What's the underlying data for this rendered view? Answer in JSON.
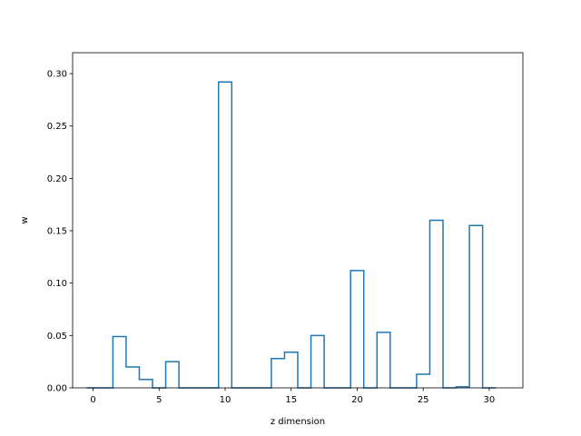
{
  "chart_data": {
    "type": "bar",
    "style": "step-histogram",
    "xlabel": "z dimension",
    "ylabel": "w",
    "xlim": [
      -1.55,
      32.55
    ],
    "ylim": [
      0,
      0.32
    ],
    "xticks": [
      0,
      5,
      10,
      15,
      20,
      25,
      30
    ],
    "yticks": [
      0.0,
      0.05,
      0.1,
      0.15,
      0.2,
      0.25,
      0.3
    ],
    "xtick_labels": [
      "0",
      "5",
      "10",
      "15",
      "20",
      "25",
      "30"
    ],
    "ytick_labels": [
      "0.00",
      "0.05",
      "0.10",
      "0.15",
      "0.20",
      "0.25",
      "0.30"
    ],
    "grid": false,
    "line_color": "#1f77b4",
    "categories": [
      0,
      1,
      2,
      3,
      4,
      5,
      6,
      7,
      8,
      9,
      10,
      11,
      12,
      13,
      14,
      15,
      16,
      17,
      18,
      19,
      20,
      21,
      22,
      23,
      24,
      25,
      26,
      27,
      28,
      29,
      30
    ],
    "values": [
      0.0,
      0.0,
      0.049,
      0.02,
      0.008,
      0.0,
      0.025,
      0.0,
      0.0,
      0.0,
      0.292,
      0.0,
      0.0,
      0.0,
      0.028,
      0.034,
      0.0,
      0.05,
      0.0,
      0.0,
      0.112,
      0.0,
      0.053,
      0.0,
      0.0,
      0.013,
      0.16,
      0.0,
      0.001,
      0.155,
      0.0
    ]
  }
}
